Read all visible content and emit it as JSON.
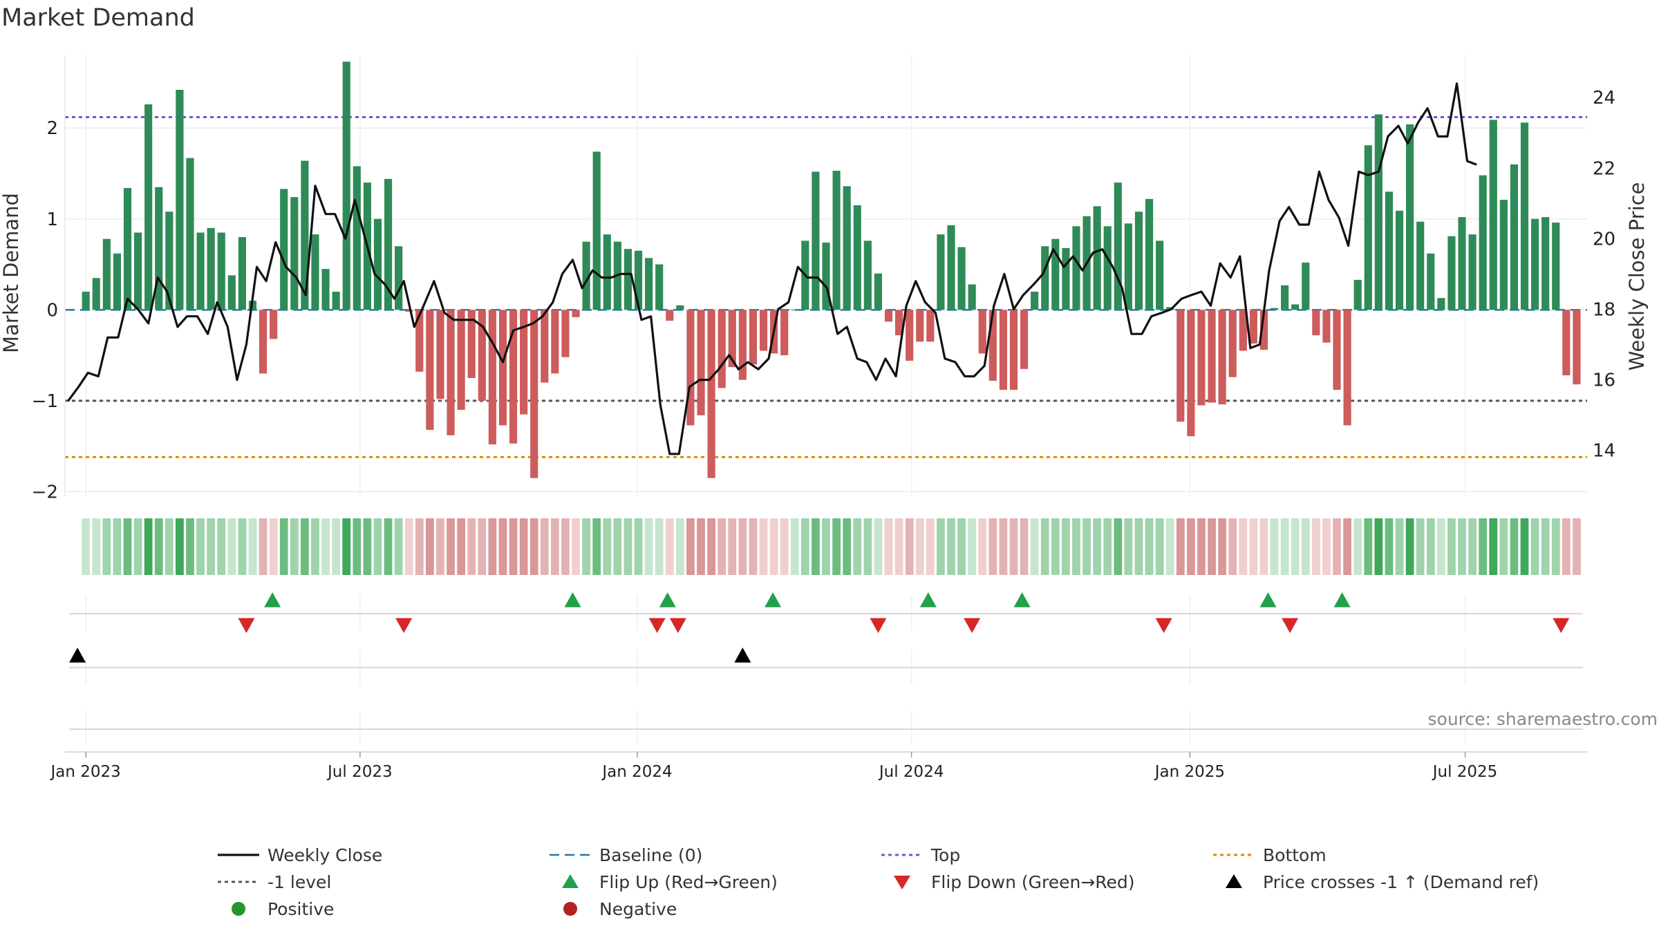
{
  "chart_data": {
    "type": "bar",
    "title": "Market Demand",
    "ylabel_left": "Market Demand",
    "ylabel_right": "Weekly Close Price",
    "source": "source: sharemaestro.com",
    "ylim_left": [
      -2.05,
      2.8
    ],
    "ylim_right": [
      12.7,
      25.2
    ],
    "yticks_left": [
      {
        "v": 2,
        "label": "2"
      },
      {
        "v": 1,
        "label": "1"
      },
      {
        "v": 0,
        "label": "0"
      },
      {
        "v": -1,
        "label": "−1"
      },
      {
        "v": -2,
        "label": "−2"
      }
    ],
    "yticks_right": [
      {
        "v": 24,
        "label": "24"
      },
      {
        "v": 22,
        "label": "22"
      },
      {
        "v": 20,
        "label": "20"
      },
      {
        "v": 18,
        "label": "18"
      },
      {
        "v": 16,
        "label": "16"
      },
      {
        "v": 14,
        "label": "14"
      }
    ],
    "x_range": [
      -2,
      144
    ],
    "xticks": [
      {
        "pos": 0,
        "label": "Jan 2023"
      },
      {
        "pos": 26.3,
        "label": "Jul 2023"
      },
      {
        "pos": 52.9,
        "label": "Jan 2024"
      },
      {
        "pos": 79.2,
        "label": "Jul 2024"
      },
      {
        "pos": 105.9,
        "label": "Jan 2025"
      },
      {
        "pos": 132.3,
        "label": "Jul 2025"
      }
    ],
    "reference_lines": [
      {
        "name": "Baseline (0)",
        "value": 0,
        "color": "#1f77b4",
        "dash": "dashed"
      },
      {
        "name": "-1 level",
        "value": -1,
        "color": "#555555",
        "dash": "dotted"
      },
      {
        "name": "Top",
        "value": 2.12,
        "color": "#6a5acd",
        "dash": "dotted"
      },
      {
        "name": "Bottom",
        "value": -1.62,
        "color": "#e08a00",
        "dash": "dotted"
      }
    ],
    "demand": [
      0.2,
      0.35,
      0.78,
      0.62,
      1.34,
      0.85,
      2.26,
      1.35,
      1.08,
      2.42,
      1.67,
      0.85,
      0.9,
      0.85,
      0.38,
      0.8,
      0.1,
      -0.7,
      -0.32,
      1.33,
      1.24,
      1.64,
      0.83,
      0.45,
      0.2,
      2.73,
      1.58,
      1.4,
      1.0,
      1.44,
      0.7,
      -0.02,
      -0.68,
      -1.32,
      -0.98,
      -1.38,
      -1.1,
      -0.75,
      -1.0,
      -1.48,
      -1.27,
      -1.47,
      -1.15,
      -1.85,
      -0.8,
      -0.7,
      -0.52,
      -0.08,
      0.75,
      1.74,
      0.83,
      0.75,
      0.67,
      0.65,
      0.57,
      0.5,
      -0.12,
      0.05,
      -1.27,
      -1.16,
      -1.85,
      -0.86,
      -0.63,
      -0.77,
      -0.6,
      -0.45,
      -0.48,
      -0.5,
      0.0,
      0.76,
      1.52,
      0.74,
      1.53,
      1.36,
      1.15,
      0.76,
      0.4,
      -0.13,
      -0.28,
      -0.56,
      -0.35,
      -0.35,
      0.83,
      0.93,
      0.69,
      0.28,
      -0.48,
      -0.78,
      -0.88,
      -0.88,
      -0.65,
      0.2,
      0.7,
      0.78,
      0.68,
      0.92,
      1.03,
      1.14,
      0.92,
      1.4,
      0.95,
      1.08,
      1.22,
      0.76,
      0.03,
      -1.23,
      -1.39,
      -1.05,
      -1.02,
      -1.04,
      -0.74,
      -0.45,
      -0.37,
      -0.44,
      0.02,
      0.27,
      0.06,
      0.52,
      -0.28,
      -0.36,
      -0.88,
      -1.27,
      0.33,
      1.81,
      2.15,
      1.3,
      1.09,
      2.04,
      0.97,
      0.62,
      0.13,
      0.81,
      1.02,
      0.83,
      1.48,
      2.09,
      1.21,
      1.6,
      2.06,
      1.0,
      1.02,
      0.96,
      -0.72,
      -0.82
    ],
    "flip_up": [
      [
        17.9,
        0.5
      ],
      [
        46.7,
        0.5
      ],
      [
        55.8,
        0.5
      ],
      [
        65.9,
        0.5
      ],
      [
        80.8,
        0.5
      ],
      [
        89.8,
        0.5
      ],
      [
        113.4,
        0.5
      ],
      [
        120.5,
        0.5
      ]
    ],
    "flip_down": [
      [
        15.4,
        -0.5
      ],
      [
        30.5,
        -0.5
      ],
      [
        54.8,
        -0.5
      ],
      [
        56.8,
        -0.5
      ],
      [
        76.0,
        -0.5
      ],
      [
        85.0,
        -0.5
      ],
      [
        103.4,
        -0.5
      ],
      [
        115.5,
        -0.5
      ],
      [
        141.5,
        -0.5
      ]
    ],
    "price_cross": [
      -0.8,
      63.0
    ],
    "price": [
      [
        -1.7,
        15.4
      ],
      [
        -0.7,
        15.8
      ],
      [
        0.2,
        16.2
      ],
      [
        1.2,
        16.1
      ],
      [
        2.1,
        17.2
      ],
      [
        3.1,
        17.2
      ],
      [
        4.0,
        18.3
      ],
      [
        5.0,
        18.0
      ],
      [
        6.0,
        17.6
      ],
      [
        6.9,
        18.9
      ],
      [
        7.8,
        18.5
      ],
      [
        8.8,
        17.5
      ],
      [
        9.7,
        17.8
      ],
      [
        10.7,
        17.8
      ],
      [
        11.7,
        17.3
      ],
      [
        12.6,
        18.2
      ],
      [
        13.6,
        17.5
      ],
      [
        14.5,
        16.0
      ],
      [
        15.4,
        17.0
      ],
      [
        16.4,
        19.2
      ],
      [
        17.3,
        18.8
      ],
      [
        18.2,
        19.9
      ],
      [
        19.2,
        19.2
      ],
      [
        20.2,
        18.9
      ],
      [
        21.1,
        18.4
      ],
      [
        22.0,
        21.5
      ],
      [
        23.0,
        20.7
      ],
      [
        23.9,
        20.7
      ],
      [
        24.9,
        20.0
      ],
      [
        25.8,
        21.1
      ],
      [
        26.8,
        20.0
      ],
      [
        27.7,
        19.0
      ],
      [
        28.7,
        18.7
      ],
      [
        29.6,
        18.3
      ],
      [
        30.5,
        18.8
      ],
      [
        31.5,
        17.5
      ],
      [
        32.4,
        18.1
      ],
      [
        33.4,
        18.8
      ],
      [
        34.4,
        17.9
      ],
      [
        35.3,
        17.7
      ],
      [
        36.3,
        17.7
      ],
      [
        37.2,
        17.7
      ],
      [
        38.1,
        17.5
      ],
      [
        39.1,
        17.0
      ],
      [
        40.0,
        16.5
      ],
      [
        41.0,
        17.4
      ],
      [
        42.0,
        17.5
      ],
      [
        42.9,
        17.6
      ],
      [
        43.8,
        17.8
      ],
      [
        44.8,
        18.2
      ],
      [
        45.7,
        19.0
      ],
      [
        46.7,
        19.4
      ],
      [
        47.6,
        18.6
      ],
      [
        48.6,
        19.1
      ],
      [
        49.5,
        18.9
      ],
      [
        50.4,
        18.9
      ],
      [
        51.3,
        19.0
      ],
      [
        52.3,
        19.0
      ],
      [
        53.3,
        17.7
      ],
      [
        54.2,
        17.8
      ],
      [
        55.1,
        15.3
      ],
      [
        56.0,
        13.9
      ],
      [
        56.9,
        13.9
      ],
      [
        57.9,
        15.8
      ],
      [
        58.9,
        16.0
      ],
      [
        59.8,
        16.0
      ],
      [
        60.7,
        16.3
      ],
      [
        61.7,
        16.7
      ],
      [
        62.6,
        16.3
      ],
      [
        63.5,
        16.5
      ],
      [
        64.5,
        16.3
      ],
      [
        65.5,
        16.6
      ],
      [
        66.4,
        18.0
      ],
      [
        67.4,
        18.2
      ],
      [
        68.3,
        19.2
      ],
      [
        69.2,
        18.9
      ],
      [
        70.2,
        18.9
      ],
      [
        71.1,
        18.6
      ],
      [
        72.1,
        17.3
      ],
      [
        73.0,
        17.5
      ],
      [
        74.0,
        16.6
      ],
      [
        74.9,
        16.5
      ],
      [
        75.8,
        16.0
      ],
      [
        76.7,
        16.6
      ],
      [
        77.7,
        16.1
      ],
      [
        78.7,
        18.1
      ],
      [
        79.6,
        18.8
      ],
      [
        80.5,
        18.2
      ],
      [
        81.5,
        17.9
      ],
      [
        82.4,
        16.6
      ],
      [
        83.4,
        16.5
      ],
      [
        84.3,
        16.1
      ],
      [
        85.2,
        16.1
      ],
      [
        86.2,
        16.4
      ],
      [
        87.1,
        18.1
      ],
      [
        88.1,
        19.0
      ],
      [
        89.0,
        18.0
      ],
      [
        89.9,
        18.4
      ],
      [
        90.9,
        18.7
      ],
      [
        91.8,
        19.0
      ],
      [
        92.8,
        19.7
      ],
      [
        93.8,
        19.2
      ],
      [
        94.7,
        19.5
      ],
      [
        95.6,
        19.1
      ],
      [
        96.6,
        19.6
      ],
      [
        97.5,
        19.7
      ],
      [
        98.5,
        19.2
      ],
      [
        99.4,
        18.6
      ],
      [
        100.3,
        17.3
      ],
      [
        101.3,
        17.3
      ],
      [
        102.2,
        17.8
      ],
      [
        103.2,
        17.9
      ],
      [
        104.1,
        18.0
      ],
      [
        105.1,
        18.3
      ],
      [
        106.0,
        18.4
      ],
      [
        107.0,
        18.5
      ],
      [
        107.9,
        18.1
      ],
      [
        108.8,
        19.3
      ],
      [
        109.8,
        18.9
      ],
      [
        110.7,
        19.5
      ],
      [
        111.7,
        16.9
      ],
      [
        112.6,
        17.0
      ],
      [
        113.5,
        19.1
      ],
      [
        114.5,
        20.5
      ],
      [
        115.4,
        20.9
      ],
      [
        116.4,
        20.4
      ],
      [
        117.3,
        20.4
      ],
      [
        118.3,
        21.9
      ],
      [
        119.2,
        21.1
      ],
      [
        120.2,
        20.6
      ],
      [
        121.1,
        19.8
      ],
      [
        122.1,
        21.9
      ],
      [
        123.0,
        21.8
      ],
      [
        124.0,
        21.9
      ],
      [
        124.9,
        22.9
      ],
      [
        125.9,
        23.2
      ],
      [
        126.8,
        22.7
      ],
      [
        127.8,
        23.3
      ],
      [
        128.7,
        23.7
      ],
      [
        129.7,
        22.9
      ],
      [
        130.6,
        22.9
      ],
      [
        131.5,
        24.4
      ],
      [
        132.5,
        22.2
      ],
      [
        133.4,
        22.1
      ]
    ],
    "legend": [
      {
        "label": "Weekly Close",
        "kind": "line-solid",
        "color": "#111111"
      },
      {
        "label": "Baseline (0)",
        "kind": "line-dashed",
        "color": "#1f77b4"
      },
      {
        "label": "Top",
        "kind": "line-dotted",
        "color": "#6a5acd"
      },
      {
        "label": "Bottom",
        "kind": "line-dotted",
        "color": "#e08a00"
      },
      {
        "label": "-1 level",
        "kind": "line-dotted",
        "color": "#555555"
      },
      {
        "label": "Flip Up (Red→Green)",
        "kind": "triangle-up",
        "color": "#22a04a"
      },
      {
        "label": "Flip Down (Green→Red)",
        "kind": "triangle-down",
        "color": "#d62728"
      },
      {
        "label": "Price crosses -1 ↑ (Demand ref)",
        "kind": "triangle-up",
        "color": "#000000"
      },
      {
        "label": "Positive",
        "kind": "dot",
        "color": "#22962d"
      },
      {
        "label": "Negative",
        "kind": "dot",
        "color": "#b22222"
      }
    ],
    "colors": {
      "positive": "#2e8b57",
      "negative": "#cd5c5c",
      "price": "#111111"
    }
  }
}
